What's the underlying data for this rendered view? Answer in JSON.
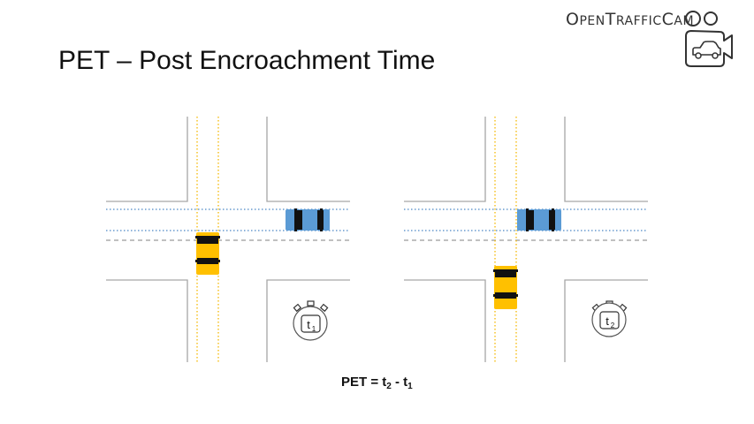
{
  "slide": {
    "title": "PET – Post Encroachment Time"
  },
  "logo": {
    "text_parts": [
      "O",
      "PEN",
      "T",
      "RAFFIC",
      "C",
      "AM"
    ],
    "icon": "camera-car-icon"
  },
  "scenes": [
    {
      "timer_label": "t",
      "timer_subscript": "1"
    },
    {
      "timer_label": "t",
      "timer_subscript": "2"
    }
  ],
  "formula": {
    "prefix": "PET = t",
    "sub_a": "2",
    "middle": " - t",
    "sub_b": "1"
  },
  "colors": {
    "road_edge": "#a6a6a6",
    "lane_divider": "#808080",
    "yellow_crosswalk": "#f5b800",
    "blue_crosswalk": "#4a86c5",
    "yellow_car": "#ffc000",
    "blue_car": "#5b9bd5",
    "wheel": "#111111"
  }
}
